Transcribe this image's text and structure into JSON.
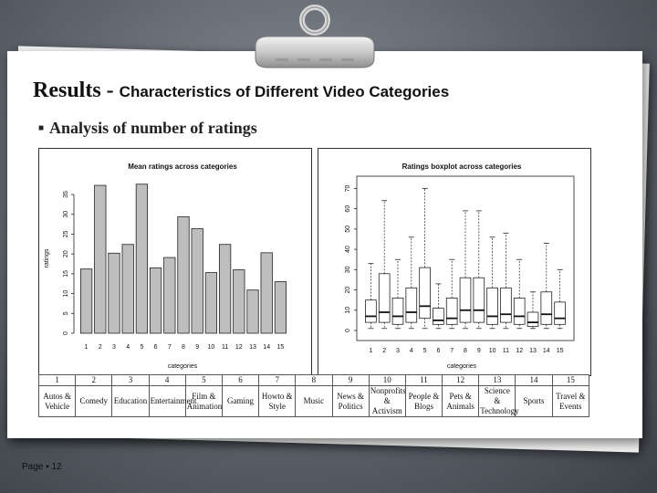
{
  "slide": {
    "title": "Results -",
    "subtitle": "Characteristics of Different Video Categories",
    "bullet": "Analysis of number of ratings",
    "footer_prefix": "Page",
    "page_number": "12"
  },
  "categories_table": {
    "numbers": [
      "1",
      "2",
      "3",
      "4",
      "5",
      "6",
      "7",
      "8",
      "9",
      "10",
      "11",
      "12",
      "13",
      "14",
      "15"
    ],
    "names": [
      [
        "Autos &",
        "Vehicle"
      ],
      [
        "Comedy"
      ],
      [
        "Education"
      ],
      [
        "Entertainment"
      ],
      [
        "Film &",
        "Animation"
      ],
      [
        "Gaming"
      ],
      [
        "Howto &",
        "Style"
      ],
      [
        "Music"
      ],
      [
        "News &",
        "Politics"
      ],
      [
        "Nonprofits",
        "& Activism"
      ],
      [
        "People &",
        "Blogs"
      ],
      [
        "Pets &",
        "Animals"
      ],
      [
        "Science &",
        "Technology"
      ],
      [
        "Sports"
      ],
      [
        "Travel &",
        "Events"
      ]
    ]
  },
  "chart_data": [
    {
      "type": "bar",
      "title": "Mean ratings across categories",
      "xlabel": "categories",
      "ylabel": "ratings",
      "categories": [
        "1",
        "2",
        "3",
        "4",
        "5",
        "6",
        "7",
        "8",
        "9",
        "10",
        "11",
        "12",
        "13",
        "14",
        "15"
      ],
      "values": [
        16.2,
        37.3,
        20.2,
        22.4,
        37.6,
        16.5,
        19.1,
        29.4,
        26.4,
        15.3,
        22.4,
        16.0,
        10.9,
        20.3,
        13.0
      ],
      "yticks": [
        0,
        5,
        10,
        15,
        20,
        25,
        30,
        35
      ],
      "ylim": [
        0,
        38
      ],
      "bar_color": "#bebebe"
    },
    {
      "type": "boxplot",
      "title": "Ratings boxplot across categories",
      "xlabel": "categories",
      "ylabel": "",
      "categories": [
        "1",
        "2",
        "3",
        "4",
        "5",
        "6",
        "7",
        "8",
        "9",
        "10",
        "11",
        "12",
        "13",
        "14",
        "15"
      ],
      "boxes": [
        {
          "min": 1,
          "q1": 4,
          "median": 7,
          "q3": 15,
          "max": 33
        },
        {
          "min": 1,
          "q1": 4,
          "median": 9,
          "q3": 28,
          "max": 64
        },
        {
          "min": 1,
          "q1": 3,
          "median": 7,
          "q3": 16,
          "max": 35
        },
        {
          "min": 1,
          "q1": 4,
          "median": 9,
          "q3": 21,
          "max": 46
        },
        {
          "min": 1,
          "q1": 6,
          "median": 12,
          "q3": 31,
          "max": 70
        },
        {
          "min": 1,
          "q1": 3,
          "median": 5,
          "q3": 11,
          "max": 23
        },
        {
          "min": 1,
          "q1": 3,
          "median": 6,
          "q3": 16,
          "max": 35
        },
        {
          "min": 1,
          "q1": 4,
          "median": 10,
          "q3": 26,
          "max": 59
        },
        {
          "min": 1,
          "q1": 4,
          "median": 10,
          "q3": 26,
          "max": 59
        },
        {
          "min": 1,
          "q1": 3,
          "median": 7,
          "q3": 21,
          "max": 46
        },
        {
          "min": 1,
          "q1": 4,
          "median": 8,
          "q3": 21,
          "max": 48
        },
        {
          "min": 1,
          "q1": 3,
          "median": 7,
          "q3": 16,
          "max": 35
        },
        {
          "min": 1,
          "q1": 2,
          "median": 4,
          "q3": 9,
          "max": 19
        },
        {
          "min": 1,
          "q1": 3,
          "median": 8,
          "q3": 19,
          "max": 43
        },
        {
          "min": 1,
          "q1": 3,
          "median": 6,
          "q3": 14,
          "max": 30
        }
      ],
      "yticks": [
        0,
        10,
        20,
        30,
        40,
        50,
        60,
        70
      ],
      "ylim": [
        0,
        72
      ]
    }
  ]
}
